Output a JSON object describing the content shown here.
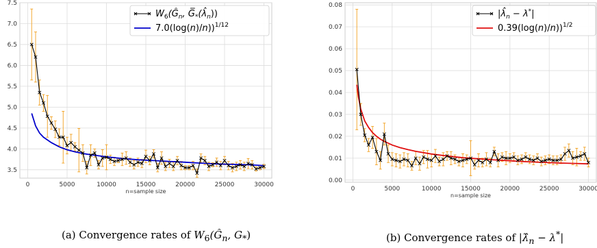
{
  "chart_data": [
    {
      "type": "line",
      "id": "a",
      "xlabel": "n=sample size",
      "ylabel": "",
      "xlim": [
        -1000,
        31000
      ],
      "ylim": [
        3.3,
        7.5
      ],
      "xticks": [
        0,
        5000,
        10000,
        15000,
        20000,
        25000,
        30000
      ],
      "xtick_labels": [
        "0",
        "5000",
        "10000",
        "15000",
        "20000",
        "25000",
        "30000"
      ],
      "yticks": [
        3.5,
        4.0,
        4.5,
        5.0,
        5.5,
        6.0,
        6.5,
        7.0,
        7.5
      ],
      "ytick_labels": [
        "3.5",
        "4.0",
        "4.5",
        "5.0",
        "5.5",
        "6.0",
        "6.5",
        "7.0",
        "7.5"
      ],
      "grid": true,
      "legend_placement": "top-right",
      "series": [
        {
          "name": "W6(Ĝn, G̅*(λ̂n))",
          "color": "#000000",
          "marker": "x",
          "x": [
            500,
            1000,
            1500,
            2000,
            2500,
            3000,
            3500,
            4000,
            4500,
            5000,
            5500,
            6000,
            6500,
            7000,
            7500,
            8000,
            8500,
            9000,
            9500,
            10000,
            10500,
            11000,
            11500,
            12000,
            12500,
            13000,
            13500,
            14000,
            14500,
            15000,
            15500,
            16000,
            16500,
            17000,
            17500,
            18000,
            18500,
            19000,
            19500,
            20000,
            20500,
            21000,
            21500,
            22000,
            22500,
            23000,
            23500,
            24000,
            24500,
            25000,
            25500,
            26000,
            26500,
            27000,
            27500,
            28000,
            28500,
            29000,
            29500,
            30000
          ],
          "y": [
            6.5,
            6.2,
            5.35,
            5.1,
            4.78,
            4.62,
            4.47,
            4.28,
            4.28,
            4.08,
            4.15,
            4.05,
            3.97,
            3.9,
            3.55,
            3.85,
            3.9,
            3.62,
            3.78,
            3.8,
            3.75,
            3.7,
            3.72,
            3.75,
            3.78,
            3.68,
            3.62,
            3.68,
            3.65,
            3.82,
            3.72,
            3.88,
            3.55,
            3.78,
            3.58,
            3.65,
            3.58,
            3.72,
            3.6,
            3.55,
            3.55,
            3.6,
            3.42,
            3.78,
            3.72,
            3.58,
            3.62,
            3.68,
            3.6,
            3.72,
            3.6,
            3.55,
            3.58,
            3.62,
            3.58,
            3.65,
            3.62,
            3.52,
            3.55,
            3.58
          ],
          "err": [
            0.85,
            0.6,
            0.3,
            0.2,
            0.5,
            0.15,
            0.2,
            0.2,
            0.62,
            0.2,
            0.2,
            0.1,
            0.52,
            0.2,
            0.15,
            0.25,
            0.1,
            0.1,
            0.2,
            0.3,
            0.1,
            0.1,
            0.05,
            0.15,
            0.15,
            0.1,
            0.1,
            0.1,
            0.1,
            0.15,
            0.1,
            0.1,
            0.1,
            0.15,
            0.1,
            0.1,
            0.1,
            0.1,
            0.1,
            0.05,
            0.05,
            0.1,
            0.1,
            0.1,
            0.1,
            0.1,
            0.05,
            0.1,
            0.1,
            0.1,
            0.1,
            0.1,
            0.1,
            0.1,
            0.1,
            0.12,
            0.1,
            0.05,
            0.05,
            0.05
          ]
        },
        {
          "name": "7.0(log(n)/n))^1/12",
          "color": "#0000cc",
          "x": [
            500,
            1000,
            1500,
            2000,
            3000,
            4000,
            5000,
            6000,
            7000,
            8000,
            10000,
            12000,
            14000,
            16000,
            18000,
            20000,
            22000,
            24000,
            26000,
            28000,
            30000
          ],
          "y": [
            4.85,
            4.55,
            4.38,
            4.28,
            4.15,
            4.05,
            3.98,
            3.93,
            3.89,
            3.86,
            3.81,
            3.77,
            3.74,
            3.72,
            3.7,
            3.68,
            3.66,
            3.64,
            3.63,
            3.62,
            3.6
          ]
        }
      ],
      "legend": [
        {
          "main": "W",
          "sub": "6",
          "rest": "(Ĝ",
          "sub2": "n",
          "rest2": ", G̅",
          "sub3": "*",
          "rest3": "(λ̂",
          "sub4": "n",
          "rest4": "))"
        },
        {
          "main": "7.0(log(",
          "ital": "n",
          "rest": ")/",
          "ital2": "n",
          "rest2": "))",
          "sup": "1/12"
        }
      ],
      "error_color": "#f2a01e"
    },
    {
      "type": "line",
      "id": "b",
      "xlabel": "n=sample size",
      "ylabel": "",
      "xlim": [
        -1000,
        31000
      ],
      "ylim": [
        -0.001,
        0.081
      ],
      "xticks": [
        0,
        5000,
        10000,
        15000,
        20000,
        25000,
        30000
      ],
      "xtick_labels": [
        "0",
        "5000",
        "10000",
        "15000",
        "20000",
        "25000",
        "30000"
      ],
      "yticks": [
        0.0,
        0.01,
        0.02,
        0.03,
        0.04,
        0.05,
        0.06,
        0.07,
        0.08
      ],
      "ytick_labels": [
        "0.00",
        "0.01",
        "0.02",
        "0.03",
        "0.04",
        "0.05",
        "0.06",
        "0.07",
        "0.08"
      ],
      "grid": true,
      "legend_placement": "top-right",
      "series": [
        {
          "name": "|λ̂n − λ*|",
          "color": "#000000",
          "marker": "x",
          "x": [
            500,
            1000,
            1500,
            2000,
            2500,
            3000,
            3500,
            4000,
            4500,
            5000,
            5500,
            6000,
            6500,
            7000,
            7500,
            8000,
            8500,
            9000,
            9500,
            10000,
            10500,
            11000,
            11500,
            12000,
            12500,
            13000,
            13500,
            14000,
            14500,
            15000,
            15500,
            16000,
            16500,
            17000,
            17500,
            18000,
            18500,
            19000,
            19500,
            20000,
            20500,
            21000,
            21500,
            22000,
            22500,
            23000,
            23500,
            24000,
            24500,
            25000,
            25500,
            26000,
            26500,
            27000,
            27500,
            28000,
            28500,
            29000,
            29500,
            30000
          ],
          "y": [
            0.0505,
            0.03,
            0.0205,
            0.016,
            0.0195,
            0.013,
            0.009,
            0.021,
            0.012,
            0.0095,
            0.009,
            0.0085,
            0.0095,
            0.009,
            0.0065,
            0.01,
            0.0075,
            0.0105,
            0.0095,
            0.009,
            0.011,
            0.0085,
            0.0095,
            0.011,
            0.01,
            0.0095,
            0.0085,
            0.009,
            0.0095,
            0.01,
            0.007,
            0.009,
            0.008,
            0.0095,
            0.008,
            0.013,
            0.009,
            0.0105,
            0.01,
            0.01,
            0.0105,
            0.009,
            0.0095,
            0.0105,
            0.0095,
            0.009,
            0.01,
            0.0085,
            0.009,
            0.0095,
            0.009,
            0.009,
            0.0095,
            0.012,
            0.0135,
            0.01,
            0.0105,
            0.011,
            0.012,
            0.008
          ],
          "err": [
            0.0275,
            0.005,
            0.003,
            0.003,
            0.005,
            0.006,
            0.004,
            0.005,
            0.004,
            0.003,
            0.003,
            0.003,
            0.003,
            0.003,
            0.002,
            0.003,
            0.003,
            0.003,
            0.004,
            0.003,
            0.003,
            0.002,
            0.003,
            0.002,
            0.003,
            0.002,
            0.002,
            0.003,
            0.002,
            0.008,
            0.002,
            0.003,
            0.002,
            0.003,
            0.002,
            0.002,
            0.003,
            0.002,
            0.003,
            0.002,
            0.002,
            0.002,
            0.002,
            0.002,
            0.002,
            0.002,
            0.002,
            0.002,
            0.002,
            0.002,
            0.002,
            0.002,
            0.002,
            0.003,
            0.003,
            0.003,
            0.004,
            0.002,
            0.003,
            0.002
          ]
        },
        {
          "name": "0.39(log(n)/n))^1/2",
          "color": "#e01010",
          "x": [
            500,
            700,
            1000,
            1500,
            2000,
            2500,
            3000,
            3500,
            4000,
            5000,
            6000,
            7000,
            8000,
            10000,
            12000,
            14000,
            16000,
            18000,
            20000,
            22000,
            24000,
            26000,
            28000,
            30000
          ],
          "y": [
            0.0435,
            0.038,
            0.0325,
            0.027,
            0.024,
            0.0217,
            0.02,
            0.0187,
            0.0177,
            0.016,
            0.0148,
            0.0139,
            0.0131,
            0.0119,
            0.011,
            0.0102,
            0.0097,
            0.0092,
            0.0088,
            0.0084,
            0.0081,
            0.0078,
            0.0076,
            0.0074
          ]
        }
      ],
      "legend": [
        {
          "pre": "|λ̂",
          "sub": "n",
          "rest": " − λ",
          "sup": "*",
          "post": "|"
        },
        {
          "main": "0.39(log(",
          "ital": "n",
          "rest": ")/",
          "ital2": "n",
          "rest2": "))",
          "sup": "1/2"
        }
      ],
      "error_color": "#f2a01e"
    }
  ],
  "captions": {
    "a": {
      "prefix": "(a) Convergence rates of ",
      "math": "W",
      "sub": "6",
      "rest": "(Ĝ",
      "sub2": "n",
      "rest2": ", G",
      "sub3": "*",
      "rest3": ")"
    },
    "b": {
      "prefix": "(b) Convergence rates of ",
      "math": "|λ̂",
      "sub": "n",
      "rest": " − λ",
      "sup": "*",
      "rest2": "|"
    }
  }
}
